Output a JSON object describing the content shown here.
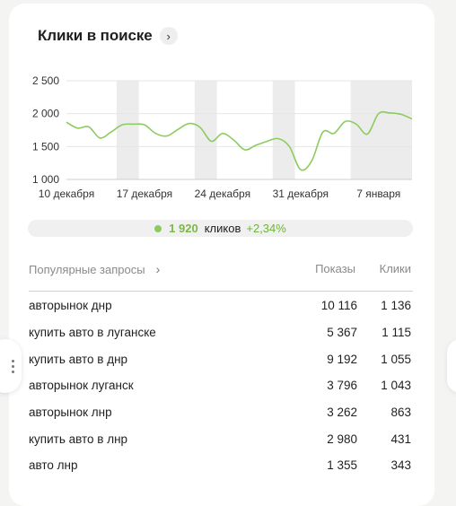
{
  "widget": {
    "title": "Клики в поиске",
    "title_arrow": "›"
  },
  "chart_data": {
    "type": "line",
    "y_ticks": [
      "2 500",
      "2 000",
      "1 500",
      "1 000"
    ],
    "y_tick_values": [
      2500,
      2000,
      1500,
      1000
    ],
    "ylim": [
      1000,
      2500
    ],
    "x_labels": [
      "10 декабря",
      "17 декабря",
      "24 декабря",
      "31 декабря",
      "7 января"
    ],
    "x_label_indices": [
      0,
      7,
      14,
      21,
      28
    ],
    "weekend_bands": [
      [
        4.5,
        6.5
      ],
      [
        11.5,
        13.5
      ],
      [
        18.5,
        20.5
      ],
      [
        25.5,
        31.5
      ],
      [
        32.5,
        34.5
      ]
    ],
    "line_color": "#8ccc5f",
    "band_color": "#ececec",
    "grid": true,
    "series": [
      {
        "values": [
          1870,
          1780,
          1800,
          1630,
          1720,
          1830,
          1840,
          1830,
          1700,
          1660,
          1760,
          1850,
          1790,
          1580,
          1700,
          1600,
          1450,
          1520,
          1580,
          1620,
          1500,
          1150,
          1280,
          1720,
          1700,
          1880,
          1840,
          1690,
          2000,
          2010,
          1990,
          1920
        ]
      }
    ]
  },
  "summary": {
    "value": "1 920",
    "label": "кликов",
    "delta": "+2,34%",
    "dot_color": "#8ccc5f"
  },
  "table": {
    "col_queries": "Популярные запросы",
    "col_queries_arrow": "›",
    "col_shows": "Показы",
    "col_clicks": "Клики",
    "rows": [
      {
        "query": "авторынок днр",
        "shows": "10 116",
        "clicks": "1 136"
      },
      {
        "query": "купить авто в луганске",
        "shows": "5 367",
        "clicks": "1 115"
      },
      {
        "query": "купить авто в днр",
        "shows": "9 192",
        "clicks": "1 055"
      },
      {
        "query": "авторынок луганск",
        "shows": "3 796",
        "clicks": "1 043"
      },
      {
        "query": "авторынок лнр",
        "shows": "3 262",
        "clicks": "863"
      },
      {
        "query": "купить авто в лнр",
        "shows": "2 980",
        "clicks": "431"
      },
      {
        "query": "авто лнр",
        "shows": "1 355",
        "clicks": "343"
      }
    ]
  }
}
